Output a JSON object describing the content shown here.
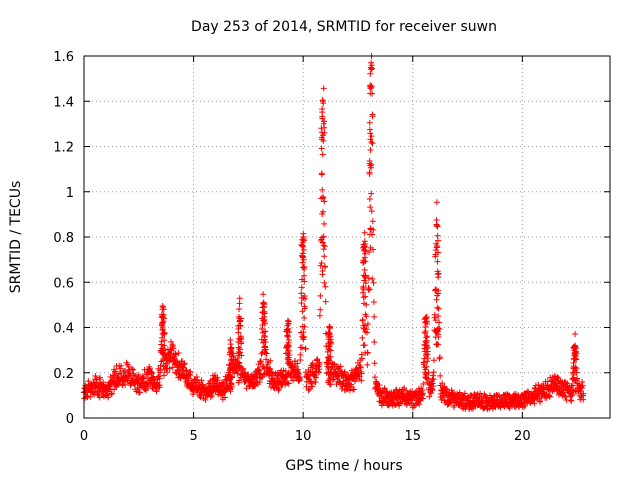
{
  "chart_data": {
    "type": "scatter",
    "title": "Day 253 of 2014, SRMTID for receiver suwn",
    "xlabel": "GPS time / hours",
    "ylabel": "SRMTID / TECUs",
    "xlim": [
      0,
      24
    ],
    "ylim": [
      0,
      1.6
    ],
    "xticks": [
      0,
      5,
      10,
      15,
      20
    ],
    "yticks": [
      0,
      0.2,
      0.4,
      0.6,
      0.8,
      1,
      1.2,
      1.4,
      1.6
    ],
    "xtick_labels": [
      "0",
      "5",
      "10",
      "15",
      "20"
    ],
    "ytick_labels": [
      "0",
      "0.2",
      "0.4",
      "0.6",
      "0.8",
      "1",
      "1.2",
      "1.4",
      "1.6"
    ],
    "grid": true,
    "marker": "+",
    "series": [
      {
        "name": "SRMTID",
        "color": "#ff0000",
        "baseline": {
          "x": [
            0,
            0.5,
            1,
            1.5,
            2,
            2.5,
            3,
            3.3,
            3.6,
            4,
            4.5,
            5,
            5.5,
            6,
            6.4,
            6.8,
            7.2,
            7.6,
            8,
            8.3,
            8.7,
            9.2,
            9.6,
            10,
            10.5,
            11,
            11.5,
            12,
            12.5,
            13,
            13.5,
            14,
            14.5,
            15,
            15.5,
            16,
            16.5,
            17,
            17.5,
            18,
            18.5,
            19,
            19.5,
            20,
            20.5,
            21,
            21.5,
            22,
            22.5
          ],
          "y": [
            0.1,
            0.15,
            0.12,
            0.18,
            0.2,
            0.15,
            0.18,
            0.15,
            0.22,
            0.28,
            0.2,
            0.15,
            0.12,
            0.15,
            0.12,
            0.25,
            0.22,
            0.15,
            0.2,
            0.25,
            0.15,
            0.18,
            0.22,
            0.15,
            0.2,
            0.25,
            0.2,
            0.15,
            0.2,
            0.22,
            0.1,
            0.08,
            0.1,
            0.08,
            0.1,
            0.15,
            0.1,
            0.08,
            0.07,
            0.08,
            0.07,
            0.08,
            0.07,
            0.08,
            0.1,
            0.12,
            0.15,
            0.12,
            0.12
          ]
        },
        "peaks": [
          {
            "x": 3.6,
            "y": 0.49
          },
          {
            "x": 6.7,
            "y": 0.3
          },
          {
            "x": 7.1,
            "y": 0.44
          },
          {
            "x": 8.2,
            "y": 0.51
          },
          {
            "x": 9.3,
            "y": 0.43
          },
          {
            "x": 10.0,
            "y": 0.8
          },
          {
            "x": 10.9,
            "y": 1.4
          },
          {
            "x": 11.2,
            "y": 0.4
          },
          {
            "x": 12.8,
            "y": 0.76
          },
          {
            "x": 13.1,
            "y": 1.57
          },
          {
            "x": 15.6,
            "y": 0.44
          },
          {
            "x": 16.1,
            "y": 0.85
          },
          {
            "x": 22.4,
            "y": 0.32
          }
        ]
      }
    ]
  }
}
